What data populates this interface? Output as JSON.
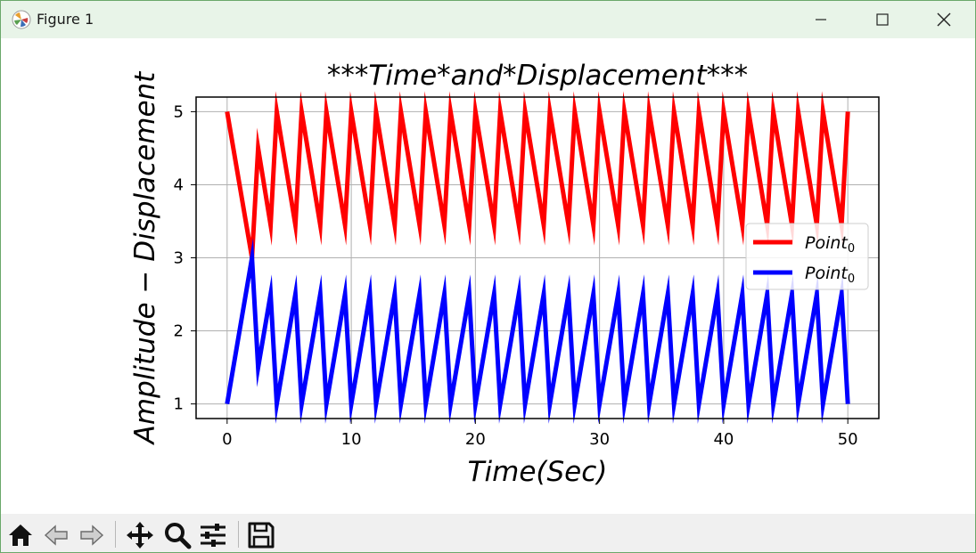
{
  "window": {
    "title": "Figure 1",
    "icons": [
      "matplotlib-logo-icon",
      "minimize-icon",
      "maximize-icon",
      "close-icon"
    ]
  },
  "toolbar": {
    "buttons": [
      {
        "name": "home-icon",
        "label": "Home"
      },
      {
        "name": "back-icon",
        "label": "Back"
      },
      {
        "name": "forward-icon",
        "label": "Forward"
      },
      {
        "name": "pan-icon",
        "label": "Pan"
      },
      {
        "name": "zoom-icon",
        "label": "Zoom"
      },
      {
        "name": "configure-subplots-icon",
        "label": "Configure subplots"
      },
      {
        "name": "save-icon",
        "label": "Save"
      }
    ]
  },
  "chart_data": {
    "type": "line",
    "title": "$***Time*and*Displacement***$",
    "title_display": "***Time*and*Displacement***",
    "xlabel": "Time(Sec)",
    "ylabel": "Amplitude − Displacement",
    "xlim": [
      -2.5,
      52.5
    ],
    "ylim": [
      0.8,
      5.2
    ],
    "xticks": [
      "0",
      "10",
      "20",
      "30",
      "40",
      "50"
    ],
    "yticks": [
      "1",
      "2",
      "3",
      "4",
      "5"
    ],
    "grid": true,
    "legend_placement": "center-right",
    "series": [
      {
        "name": "Point0",
        "name_base": "Point",
        "name_sub": "0",
        "color": "#ff0000",
        "x": [
          0,
          2,
          2.5,
          3.5,
          4,
          5.5,
          6,
          7.5,
          8,
          9.5,
          10,
          11.5,
          12,
          13.5,
          14,
          15.5,
          16,
          17.5,
          18,
          19.5,
          20,
          21.5,
          22,
          23.5,
          24,
          25.5,
          26,
          27.5,
          28,
          29.5,
          30,
          31.5,
          32,
          33.5,
          34,
          35.5,
          36,
          37.5,
          38,
          39.5,
          40,
          41.5,
          42,
          43.5,
          44,
          45.5,
          46,
          47.5,
          48,
          49.5,
          50
        ],
        "y": [
          5,
          3,
          4.5,
          3.45,
          5,
          3.45,
          5,
          3.45,
          5,
          3.45,
          5,
          3.45,
          5,
          3.45,
          5,
          3.45,
          5,
          3.45,
          5,
          3.45,
          5,
          3.45,
          5,
          3.45,
          5,
          3.45,
          5,
          3.45,
          5,
          3.45,
          5,
          3.45,
          5,
          3.45,
          5,
          3.45,
          5,
          3.45,
          5,
          3.45,
          5,
          3.45,
          5,
          3.45,
          5,
          3.45,
          5,
          3.45,
          5,
          3.45,
          5
        ]
      },
      {
        "name": "Point0",
        "name_base": "Point",
        "name_sub": "0",
        "color": "#0000ff",
        "x": [
          0,
          2,
          2.5,
          3.5,
          4,
          5.5,
          6,
          7.5,
          8,
          9.5,
          10,
          11.5,
          12,
          13.5,
          14,
          15.5,
          16,
          17.5,
          18,
          19.5,
          20,
          21.5,
          22,
          23.5,
          24,
          25.5,
          26,
          27.5,
          28,
          29.5,
          30,
          31.5,
          32,
          33.5,
          34,
          35.5,
          36,
          37.5,
          38,
          39.5,
          40,
          41.5,
          42,
          43.5,
          44,
          45.5,
          46,
          47.5,
          48,
          49.5,
          50
        ],
        "y": [
          1,
          3,
          1.5,
          2.5,
          1,
          2.5,
          1,
          2.5,
          1,
          2.5,
          1,
          2.5,
          1,
          2.5,
          1,
          2.5,
          1,
          2.5,
          1,
          2.5,
          1,
          2.5,
          1,
          2.5,
          1,
          2.5,
          1,
          2.5,
          1,
          2.5,
          1,
          2.5,
          1,
          2.5,
          1,
          2.5,
          1,
          2.5,
          1,
          2.5,
          1,
          2.5,
          1,
          2.5,
          1,
          2.5,
          1,
          2.5,
          1,
          2.5,
          1
        ]
      }
    ]
  }
}
